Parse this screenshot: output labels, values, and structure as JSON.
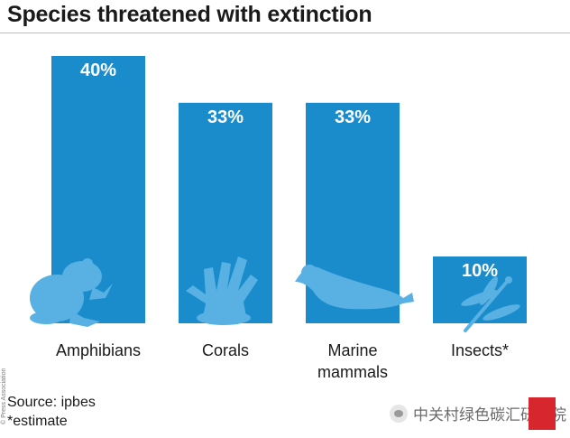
{
  "chart_data": {
    "type": "bar",
    "title": "Species threatened with extinction",
    "categories": [
      "Amphibians",
      "Corals",
      "Marine\nmammals",
      "Insects*"
    ],
    "values": [
      40,
      33,
      33,
      10
    ],
    "value_labels": [
      "40%",
      "33%",
      "33%",
      "10%"
    ],
    "ylim": [
      0,
      40
    ],
    "grid": false,
    "bar_color": "#1a8ccc",
    "icons": [
      "frog-icon",
      "coral-icon",
      "seal-icon",
      "dragonfly-icon"
    ]
  },
  "footer": {
    "source": "Source: ipbes",
    "note": "*estimate",
    "credit": "© Press Association",
    "watermark": "中关村绿色碳汇研究院"
  }
}
